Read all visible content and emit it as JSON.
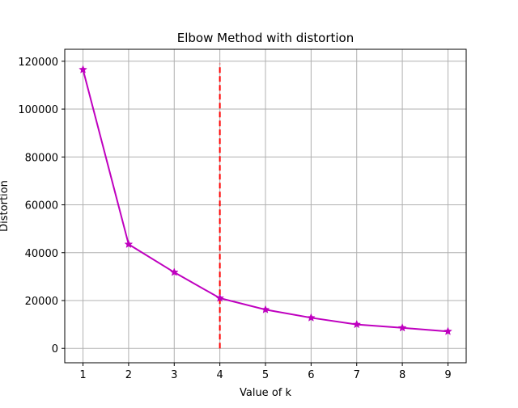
{
  "chart_data": {
    "type": "line",
    "title": "Elbow Method with distortion",
    "xlabel": "Value of k",
    "ylabel": "Distortion",
    "x": [
      1,
      2,
      3,
      4,
      5,
      6,
      7,
      8,
      9
    ],
    "series": [
      {
        "values": [
          116500,
          43500,
          31800,
          21000,
          16200,
          12800,
          10000,
          8600,
          7100
        ],
        "color": "#bf00bf",
        "marker": "star"
      }
    ],
    "reference_line": {
      "orientation": "vertical",
      "x": 4,
      "y_range": [
        0,
        119000
      ],
      "color": "#ff0000",
      "style": "dashed"
    },
    "xlim": [
      0.6,
      9.4
    ],
    "ylim": [
      -6000,
      125000
    ],
    "x_ticks": [
      1,
      2,
      3,
      4,
      5,
      6,
      7,
      8,
      9
    ],
    "y_ticks": [
      0,
      20000,
      40000,
      60000,
      80000,
      100000,
      120000
    ],
    "grid": true,
    "grid_color": "#b0b0b0"
  }
}
